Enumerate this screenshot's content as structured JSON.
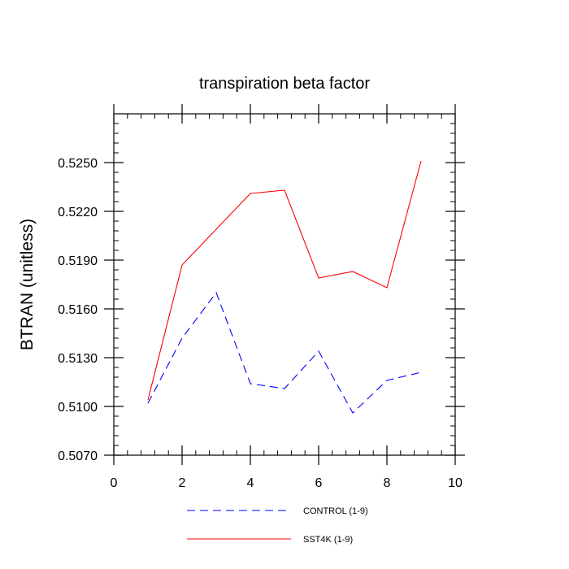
{
  "chart_data": {
    "type": "line",
    "title": "transpiration beta factor",
    "xlabel": "",
    "ylabel": "BTRAN  (unitless)",
    "xlim": [
      0,
      10
    ],
    "ylim": [
      0.507,
      0.528
    ],
    "xticks": [
      0,
      2,
      4,
      6,
      8,
      10
    ],
    "xtick_labels": [
      "0",
      "2",
      "4",
      "6",
      "8",
      "10"
    ],
    "yticks": [
      0.507,
      0.51,
      0.513,
      0.516,
      0.519,
      0.522,
      0.525
    ],
    "ytick_labels": [
      "0.5070",
      "0.5100",
      "0.5130",
      "0.5160",
      "0.5190",
      "0.5220",
      "0.5250"
    ],
    "grid": false,
    "legend_position": "bottom",
    "series": [
      {
        "name": "CONTROL (1-9)",
        "color": "#0000ff",
        "style": "dashed",
        "x": [
          1,
          2,
          3,
          4,
          5,
          6,
          7,
          8,
          9
        ],
        "y": [
          0.5102,
          0.5142,
          0.517,
          0.5114,
          0.5111,
          0.5134,
          0.5096,
          0.5116,
          0.5121
        ]
      },
      {
        "name": "SST4K (1-9)",
        "color": "#ff0000",
        "style": "solid",
        "x": [
          1,
          2,
          3,
          4,
          5,
          6,
          7,
          8,
          9
        ],
        "y": [
          0.5104,
          0.5187,
          0.5209,
          0.5231,
          0.5233,
          0.5179,
          0.5183,
          0.5173,
          0.5251
        ]
      }
    ]
  }
}
